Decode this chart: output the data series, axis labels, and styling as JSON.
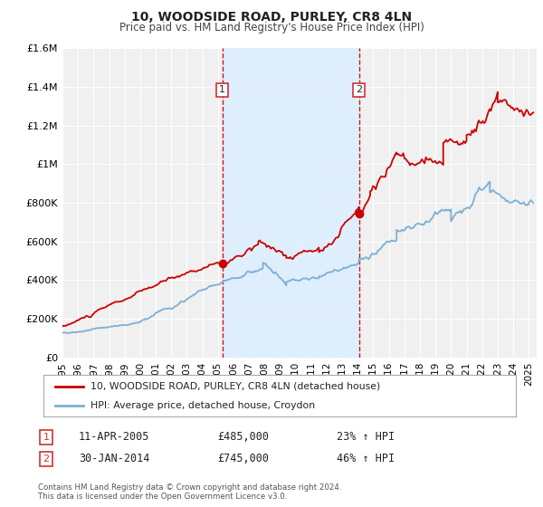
{
  "title": "10, WOODSIDE ROAD, PURLEY, CR8 4LN",
  "subtitle": "Price paid vs. HM Land Registry's House Price Index (HPI)",
  "ylim": [
    0,
    1600000
  ],
  "xlim_start": 1995.0,
  "xlim_end": 2025.5,
  "yticks": [
    0,
    200000,
    400000,
    600000,
    800000,
    1000000,
    1200000,
    1400000,
    1600000
  ],
  "ytick_labels": [
    "£0",
    "£200K",
    "£400K",
    "£600K",
    "£800K",
    "£1M",
    "£1.2M",
    "£1.4M",
    "£1.6M"
  ],
  "xticks": [
    1995,
    1996,
    1997,
    1998,
    1999,
    2000,
    2001,
    2002,
    2003,
    2004,
    2005,
    2006,
    2007,
    2008,
    2009,
    2010,
    2011,
    2012,
    2013,
    2014,
    2015,
    2016,
    2017,
    2018,
    2019,
    2020,
    2021,
    2022,
    2023,
    2024,
    2025
  ],
  "marker1_x": 2005.28,
  "marker1_y": 485000,
  "marker2_x": 2014.08,
  "marker2_y": 745000,
  "vline1_x": 2005.28,
  "vline2_x": 2014.08,
  "legend_label1": "10, WOODSIDE ROAD, PURLEY, CR8 4LN (detached house)",
  "legend_label2": "HPI: Average price, detached house, Croydon",
  "line1_color": "#cc0000",
  "line2_color": "#7bafd4",
  "annotation1_date": "11-APR-2005",
  "annotation1_price": "£485,000",
  "annotation1_hpi": "23% ↑ HPI",
  "annotation2_date": "30-JAN-2014",
  "annotation2_price": "£745,000",
  "annotation2_hpi": "46% ↑ HPI",
  "footnote1": "Contains HM Land Registry data © Crown copyright and database right 2024.",
  "footnote2": "This data is licensed under the Open Government Licence v3.0.",
  "background_color": "#ffffff",
  "plot_bg_color": "#f0f0f0",
  "shade_color": "#ddeeff",
  "grid_color": "#ffffff",
  "box_color": "#cc3333"
}
